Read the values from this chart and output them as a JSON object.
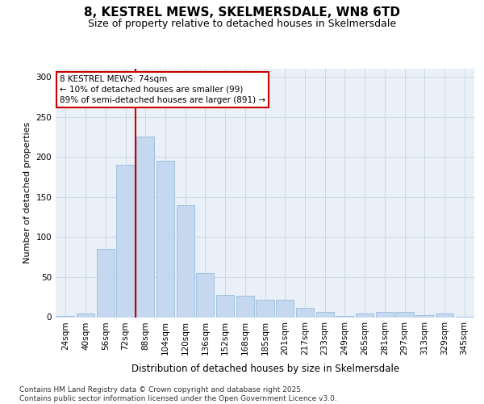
{
  "title": "8, KESTREL MEWS, SKELMERSDALE, WN8 6TD",
  "subtitle": "Size of property relative to detached houses in Skelmersdale",
  "xlabel": "Distribution of detached houses by size in Skelmersdale",
  "ylabel": "Number of detached properties",
  "categories": [
    "24sqm",
    "40sqm",
    "56sqm",
    "72sqm",
    "88sqm",
    "104sqm",
    "120sqm",
    "136sqm",
    "152sqm",
    "168sqm",
    "185sqm",
    "201sqm",
    "217sqm",
    "233sqm",
    "249sqm",
    "265sqm",
    "281sqm",
    "297sqm",
    "313sqm",
    "329sqm",
    "345sqm"
  ],
  "values": [
    2,
    5,
    85,
    190,
    225,
    195,
    140,
    55,
    28,
    27,
    22,
    22,
    12,
    7,
    2,
    5,
    7,
    7,
    3,
    5,
    1
  ],
  "bar_color": "#c5d8f0",
  "bar_edge_color": "#8ab4d8",
  "grid_color": "#c8d4e4",
  "background_color": "#eaf0f8",
  "red_line_x": 3.5,
  "annotation_text": "8 KESTREL MEWS: 74sqm\n← 10% of detached houses are smaller (99)\n89% of semi-detached houses are larger (891) →",
  "annotation_box_facecolor": "#ffffff",
  "annotation_box_edgecolor": "#cc0000",
  "footer": "Contains HM Land Registry data © Crown copyright and database right 2025.\nContains public sector information licensed under the Open Government Licence v3.0.",
  "ylim": [
    0,
    310
  ],
  "yticks": [
    0,
    50,
    100,
    150,
    200,
    250,
    300
  ],
  "title_fontsize": 11,
  "subtitle_fontsize": 9,
  "ylabel_fontsize": 8,
  "xlabel_fontsize": 8.5,
  "tick_fontsize": 7.5,
  "annotation_fontsize": 7.5,
  "footer_fontsize": 6.5
}
